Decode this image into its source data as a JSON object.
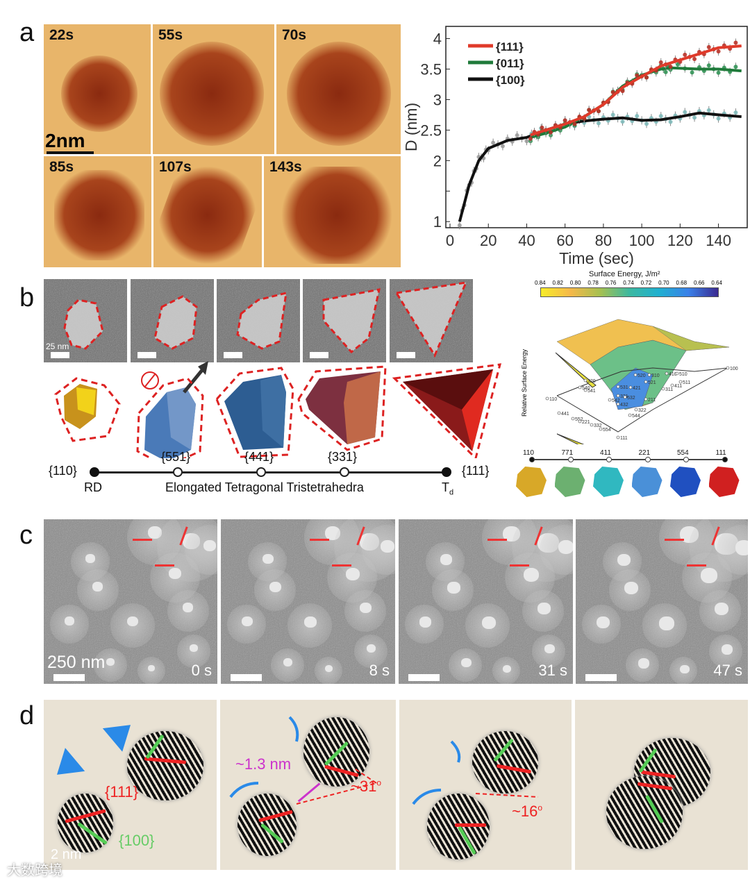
{
  "panels": {
    "a": "a",
    "b": "b",
    "c": "c",
    "d": "d"
  },
  "panel_a": {
    "frames": [
      "22s",
      "55s",
      "70s",
      "85s",
      "107s",
      "143s"
    ],
    "scale_bar": "2nm"
  },
  "chart_data": {
    "type": "line",
    "xlabel": "Time (sec)",
    "ylabel": "D (nm)",
    "xlim": [
      0,
      155
    ],
    "ylim": [
      0.9,
      4.2
    ],
    "xticks": [
      0,
      20,
      40,
      60,
      80,
      100,
      120,
      140
    ],
    "yticks": [
      1,
      1.5,
      2,
      2.5,
      3,
      3.5,
      4
    ],
    "ytick_labels": [
      "1",
      "",
      "2",
      "2.5",
      "3",
      "3.5",
      "4"
    ],
    "legend_position": "top-left",
    "series": [
      {
        "name": "{111}",
        "color": "#e03a2a",
        "x": [
          42,
          50,
          60,
          70,
          80,
          90,
          100,
          110,
          120,
          130,
          140,
          152
        ],
        "y": [
          2.42,
          2.5,
          2.6,
          2.72,
          2.92,
          3.2,
          3.38,
          3.55,
          3.65,
          3.75,
          3.85,
          3.88
        ]
      },
      {
        "name": "{011}",
        "color": "#1f7a3a",
        "x": [
          42,
          50,
          60,
          70,
          80,
          90,
          100,
          110,
          115,
          130,
          140,
          152
        ],
        "y": [
          2.38,
          2.45,
          2.55,
          2.72,
          2.92,
          3.22,
          3.4,
          3.5,
          3.52,
          3.5,
          3.5,
          3.47
        ]
      },
      {
        "name": "{100}",
        "color": "#111111",
        "x": [
          5,
          10,
          15,
          20,
          30,
          40,
          50,
          60,
          70,
          80,
          90,
          100,
          110,
          120,
          130,
          140,
          152
        ],
        "y": [
          1.0,
          1.6,
          2.0,
          2.2,
          2.33,
          2.38,
          2.5,
          2.6,
          2.65,
          2.68,
          2.7,
          2.66,
          2.67,
          2.72,
          2.78,
          2.75,
          2.72
        ]
      }
    ]
  },
  "panel_b": {
    "scale_bar": "25 nm",
    "facets": [
      "{551}",
      "{441}",
      "{331}"
    ],
    "end_left": "{110}",
    "end_right": "{111}",
    "rd": "RD",
    "td": "T",
    "td_sub": "d",
    "series_label": "Elongated Tetragonal Tristetrahedra",
    "colorbar_title": "Surface Energy, J/m²",
    "colorbar_ticks": [
      "0.84",
      "0.82",
      "0.80",
      "0.78",
      "0.76",
      "0.74",
      "0.72",
      "0.70",
      "0.68",
      "0.66",
      "0.64"
    ],
    "surface_zlabel": "Relative Surface Energy",
    "surface_points": [
      "110",
      "540",
      "320",
      "541",
      "441",
      "552",
      "221",
      "332",
      "554",
      "111",
      "531",
      "321",
      "542",
      "432",
      "532",
      "421",
      "520",
      "310",
      "521",
      "544",
      "322",
      "211",
      "410",
      "510",
      "311",
      "411",
      "511",
      "100"
    ],
    "bottom_axis": [
      "110",
      "771",
      "411",
      "221",
      "554",
      "111"
    ]
  },
  "panel_c": {
    "scale_bar": "250 nm",
    "times": [
      "0 s",
      "8 s",
      "31 s",
      "47 s"
    ]
  },
  "panel_d": {
    "facet_red": "{111}",
    "facet_green": "{100}",
    "distance": "~1.3 nm",
    "angle1": "~31",
    "angle2": "~16",
    "deg": "o",
    "scale_bar": "2 nm"
  },
  "watermark": "大数跨境"
}
